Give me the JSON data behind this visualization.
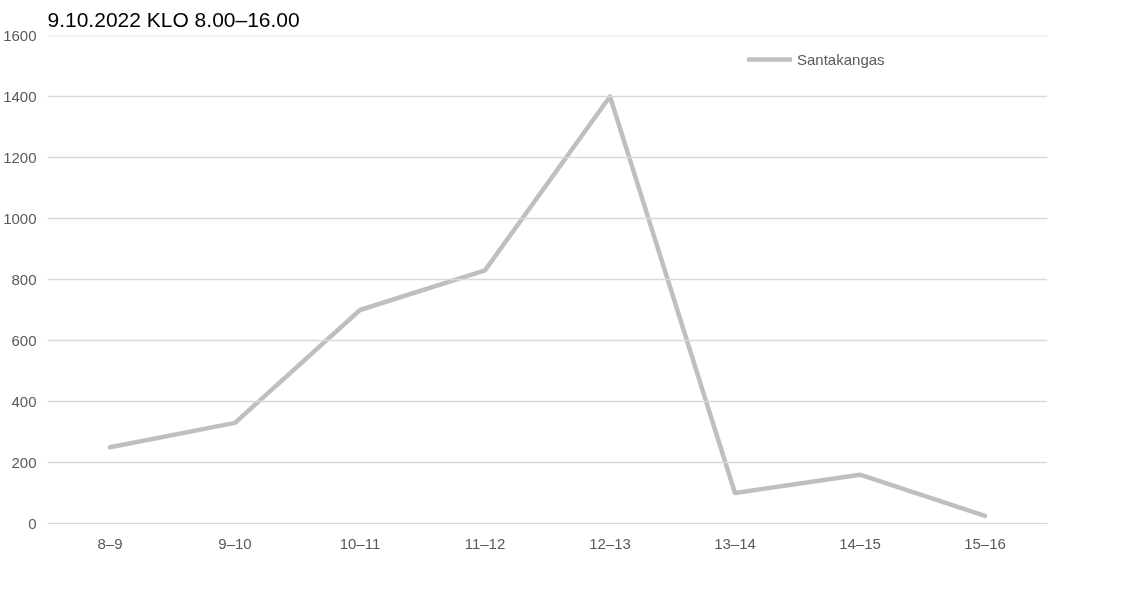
{
  "chart_data": {
    "type": "line",
    "title": "9.10.2022 KLO 8.00–16.00",
    "categories": [
      "8–9",
      "9–10",
      "10–11",
      "11–12",
      "12–13",
      "13–14",
      "14–15",
      "15–16"
    ],
    "series": [
      {
        "name": "Santakangas",
        "color": "#bfbfbf",
        "values": [
          250,
          330,
          700,
          830,
          1400,
          100,
          160,
          25
        ]
      }
    ],
    "ylim": [
      0,
      1600
    ],
    "yticks": [
      0,
      200,
      400,
      600,
      800,
      1000,
      1200,
      1400,
      1600
    ],
    "grid": "y",
    "legend": "top right",
    "marker": "none",
    "line_style": "solid"
  }
}
